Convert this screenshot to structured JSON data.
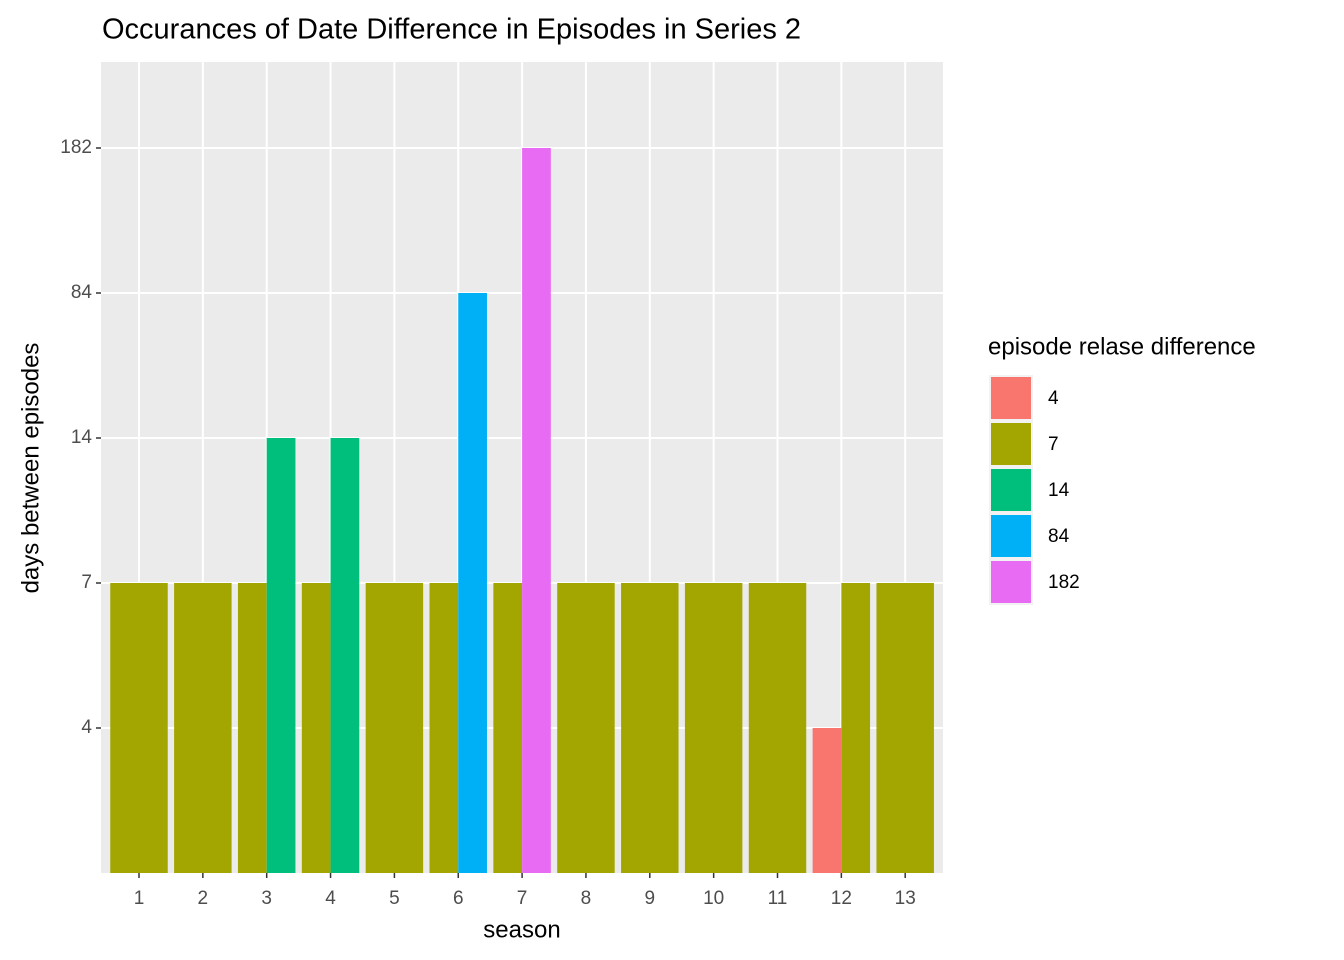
{
  "chart_data": {
    "type": "bar",
    "title": "Occurances of Date Difference in Episodes in Series 2",
    "x_label": "season",
    "y_label": "days between episodes",
    "legend_title": "episode relase difference",
    "categories": [
      "1",
      "2",
      "3",
      "4",
      "5",
      "6",
      "7",
      "8",
      "9",
      "10",
      "11",
      "12",
      "13"
    ],
    "y_scale": "discrete",
    "yticks": [
      4,
      7,
      14,
      84,
      182
    ],
    "grid": true,
    "legend_position": "right",
    "series": [
      {
        "name": "4",
        "color": "#F8766D",
        "values": [
          null,
          null,
          null,
          null,
          null,
          null,
          null,
          null,
          null,
          null,
          null,
          4,
          null
        ]
      },
      {
        "name": "7",
        "color": "#A3A500",
        "values": [
          7,
          7,
          7,
          7,
          7,
          7,
          7,
          7,
          7,
          7,
          7,
          7,
          7
        ]
      },
      {
        "name": "14",
        "color": "#00BF7D",
        "values": [
          null,
          null,
          14,
          14,
          null,
          null,
          null,
          null,
          null,
          null,
          null,
          null,
          null
        ]
      },
      {
        "name": "84",
        "color": "#00B0F6",
        "values": [
          null,
          null,
          null,
          null,
          null,
          84,
          null,
          null,
          null,
          null,
          null,
          null,
          null
        ]
      },
      {
        "name": "182",
        "color": "#E76BF3",
        "values": [
          null,
          null,
          null,
          null,
          null,
          null,
          182,
          null,
          null,
          null,
          null,
          null,
          null
        ]
      }
    ]
  }
}
